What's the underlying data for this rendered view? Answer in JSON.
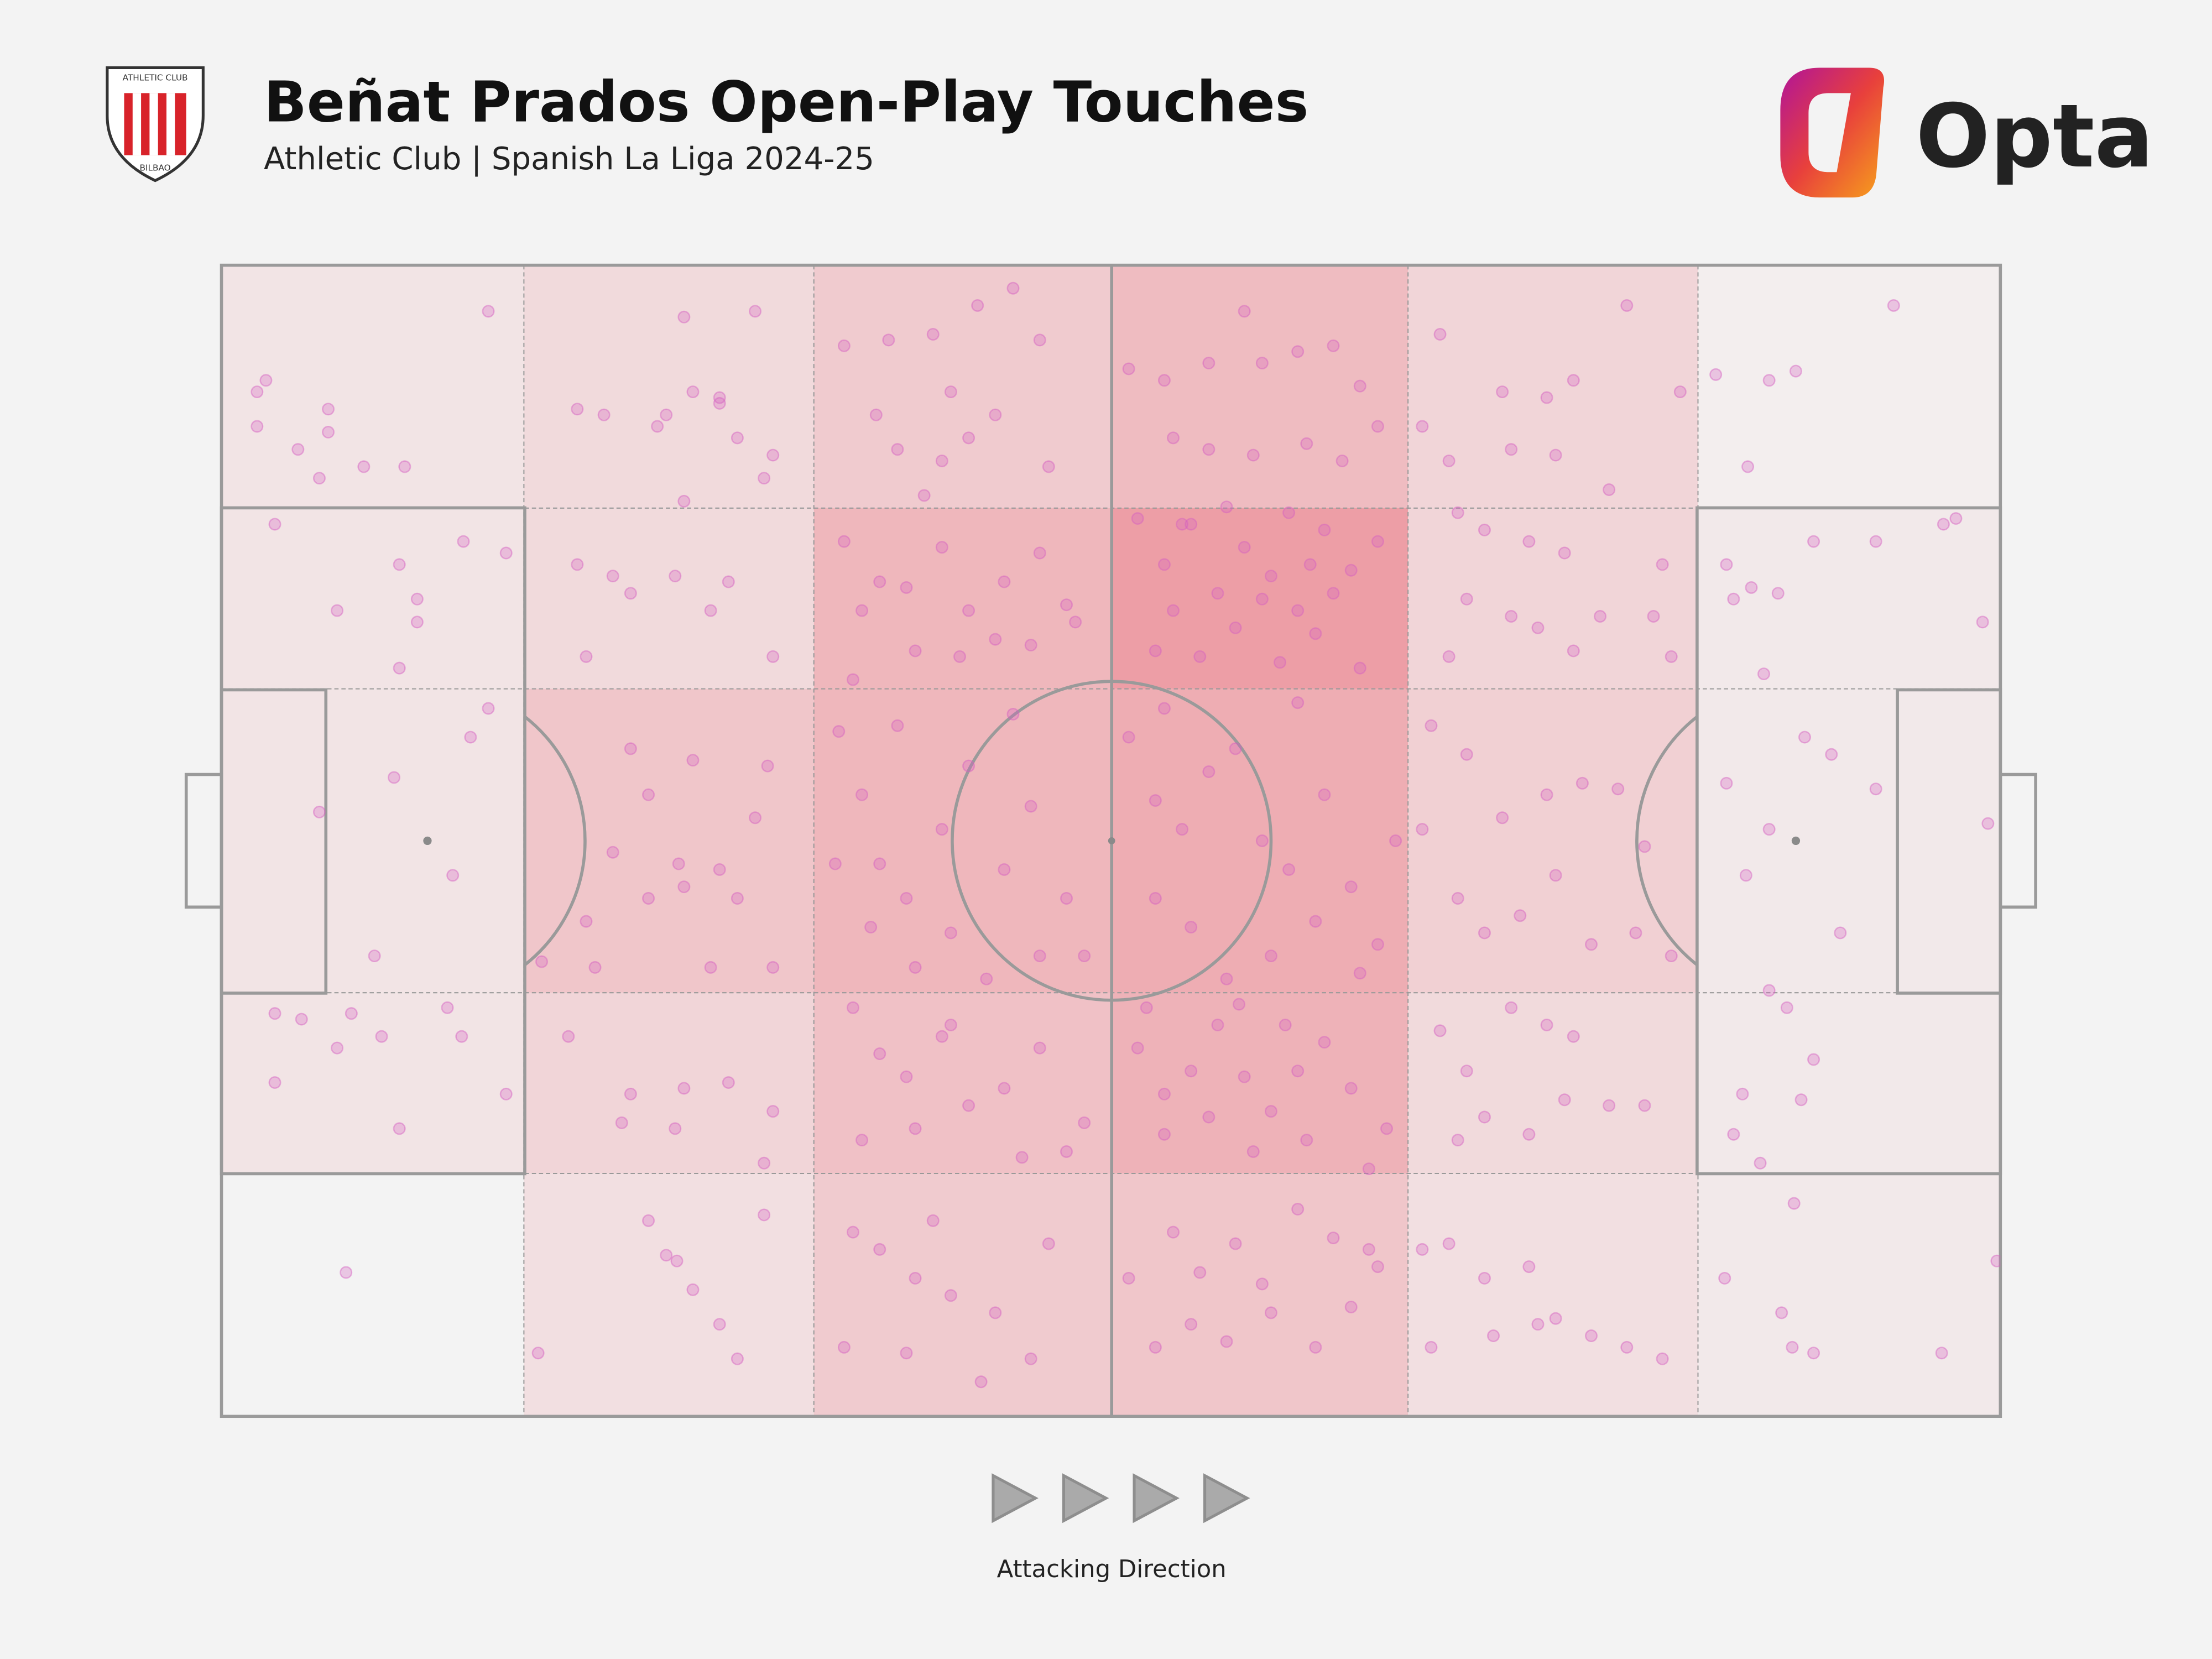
{
  "chart_data": {
    "type": "pitch-heatmap",
    "title": "Beñat Prados Open-Play Touches",
    "subtitle": "Athletic Club | Spanish La Liga 2024-25",
    "crest_top": "ATHLETIC CLUB",
    "crest_bottom": "BILBAO",
    "brand": "Opta",
    "annotation": "Attacking Direction",
    "xlim": [
      0,
      100
    ],
    "ylim": [
      0,
      100
    ],
    "colorscale": [
      "#f3f3f3",
      "#ec8f98"
    ],
    "point_color": "#d45fc0",
    "zones": {
      "x_edges": [
        0,
        17,
        33.3,
        50,
        66.7,
        83,
        100
      ],
      "y_edges": [
        0,
        21.1,
        36.8,
        63.2,
        78.9,
        100
      ],
      "values": [
        [
          0.15,
          0.25,
          0.4,
          0.55,
          0.3,
          0.05
        ],
        [
          0.15,
          0.25,
          0.6,
          0.85,
          0.3,
          0.1
        ],
        [
          0.15,
          0.45,
          0.6,
          0.7,
          0.35,
          0.1
        ],
        [
          0.15,
          0.3,
          0.5,
          0.65,
          0.25,
          0.1
        ],
        [
          0.0,
          0.2,
          0.4,
          0.45,
          0.2,
          0.1
        ]
      ]
    },
    "points": [
      [
        2,
        11
      ],
      [
        2.5,
        10
      ],
      [
        2,
        14
      ],
      [
        4.3,
        16
      ],
      [
        6,
        12.5
      ],
      [
        6,
        14.5
      ],
      [
        5.5,
        18.5
      ],
      [
        8,
        17.5
      ],
      [
        10.3,
        17.5
      ],
      [
        15,
        4
      ],
      [
        3,
        22.5
      ],
      [
        10,
        26
      ],
      [
        11,
        29
      ],
      [
        11,
        31
      ],
      [
        6.5,
        30
      ],
      [
        10,
        35
      ],
      [
        13.6,
        24
      ],
      [
        16,
        25
      ],
      [
        9.7,
        44.5
      ],
      [
        5.5,
        47.5
      ],
      [
        9,
        67
      ],
      [
        7.3,
        65
      ],
      [
        8.6,
        60
      ],
      [
        13,
        53
      ],
      [
        15,
        38.5
      ],
      [
        14,
        41
      ],
      [
        3,
        65
      ],
      [
        4.5,
        65.5
      ],
      [
        6.5,
        68
      ],
      [
        3,
        71
      ],
      [
        12.7,
        64.5
      ],
      [
        13.5,
        67
      ],
      [
        16,
        72
      ],
      [
        10,
        75
      ],
      [
        7,
        87.5
      ],
      [
        26,
        4.5
      ],
      [
        30,
        4
      ],
      [
        28,
        11.5
      ],
      [
        25,
        13
      ],
      [
        20,
        12.5
      ],
      [
        21.5,
        13
      ],
      [
        26.5,
        11
      ],
      [
        28,
        12
      ],
      [
        24.5,
        14
      ],
      [
        29,
        15
      ],
      [
        31,
        16.5
      ],
      [
        30.5,
        18.5
      ],
      [
        26,
        20.5
      ],
      [
        20,
        26
      ],
      [
        22,
        27
      ],
      [
        23,
        28.5
      ],
      [
        25.5,
        27
      ],
      [
        28.5,
        27.5
      ],
      [
        31,
        34
      ],
      [
        20.5,
        34
      ],
      [
        27.5,
        30
      ],
      [
        18,
        60.5
      ],
      [
        21,
        61
      ],
      [
        24,
        55
      ],
      [
        26,
        54
      ],
      [
        28,
        52.5
      ],
      [
        30,
        48
      ],
      [
        23,
        42
      ],
      [
        26.5,
        43
      ],
      [
        25.7,
        52
      ],
      [
        24,
        46
      ],
      [
        20.5,
        57
      ],
      [
        30.7,
        43.5
      ],
      [
        22,
        51
      ],
      [
        29,
        55
      ],
      [
        31,
        61
      ],
      [
        27.5,
        61
      ],
      [
        19.5,
        67
      ],
      [
        23,
        72
      ],
      [
        26,
        71.5
      ],
      [
        28.5,
        71
      ],
      [
        31,
        73.5
      ],
      [
        22.5,
        74.5
      ],
      [
        25.5,
        75
      ],
      [
        30.5,
        78
      ],
      [
        24,
        83
      ],
      [
        25,
        86
      ],
      [
        26.5,
        89
      ],
      [
        28,
        92
      ],
      [
        29,
        95
      ],
      [
        25.6,
        86.5
      ],
      [
        30.5,
        82.5
      ],
      [
        17.8,
        94.5
      ],
      [
        35,
        7
      ],
      [
        37.5,
        6.5
      ],
      [
        40,
        6
      ],
      [
        42.5,
        3.5
      ],
      [
        44.5,
        2
      ],
      [
        46,
        6.5
      ],
      [
        41,
        11
      ],
      [
        43.5,
        13
      ],
      [
        38,
        16
      ],
      [
        40.5,
        17
      ],
      [
        42,
        15
      ],
      [
        46.5,
        17.5
      ],
      [
        36.8,
        13
      ],
      [
        39.5,
        20
      ],
      [
        35,
        24
      ],
      [
        37,
        27.5
      ],
      [
        38.5,
        28
      ],
      [
        40.5,
        24.5
      ],
      [
        42,
        30
      ],
      [
        44,
        27.5
      ],
      [
        46,
        25
      ],
      [
        48,
        31
      ],
      [
        36,
        30
      ],
      [
        39,
        33.5
      ],
      [
        41.5,
        34
      ],
      [
        43.5,
        32.5
      ],
      [
        45.5,
        33
      ],
      [
        47.5,
        29.5
      ],
      [
        35.5,
        36
      ],
      [
        34.7,
        40.5
      ],
      [
        36,
        46
      ],
      [
        37,
        52
      ],
      [
        38.5,
        55
      ],
      [
        40.5,
        49
      ],
      [
        42,
        43.5
      ],
      [
        44,
        52.5
      ],
      [
        45.5,
        47
      ],
      [
        47.5,
        55
      ],
      [
        48.5,
        60
      ],
      [
        36.5,
        57.5
      ],
      [
        39,
        61
      ],
      [
        41,
        58
      ],
      [
        43,
        62
      ],
      [
        46,
        60
      ],
      [
        34.5,
        52
      ],
      [
        38,
        40
      ],
      [
        44.5,
        39
      ],
      [
        35.5,
        64.5
      ],
      [
        37,
        68.5
      ],
      [
        38.5,
        70.5
      ],
      [
        40.5,
        67
      ],
      [
        42,
        73
      ],
      [
        44,
        71.5
      ],
      [
        46,
        68
      ],
      [
        48.5,
        74.5
      ],
      [
        36,
        76
      ],
      [
        39,
        75
      ],
      [
        41,
        66
      ],
      [
        45,
        77.5
      ],
      [
        47.5,
        77
      ],
      [
        35.5,
        84
      ],
      [
        37,
        85.5
      ],
      [
        39,
        88
      ],
      [
        41,
        89.5
      ],
      [
        43.5,
        91
      ],
      [
        45.5,
        95
      ],
      [
        35,
        94
      ],
      [
        38.5,
        94.5
      ],
      [
        42.7,
        97
      ],
      [
        46.5,
        85
      ],
      [
        40,
        83
      ],
      [
        51,
        9
      ],
      [
        53,
        10
      ],
      [
        55.5,
        8.5
      ],
      [
        57.5,
        4
      ],
      [
        58.5,
        8.5
      ],
      [
        60.5,
        7.5
      ],
      [
        62.5,
        7
      ],
      [
        64,
        10.5
      ],
      [
        53.5,
        15
      ],
      [
        55.5,
        16
      ],
      [
        58,
        16.5
      ],
      [
        61,
        15.5
      ],
      [
        63,
        17
      ],
      [
        65,
        14
      ],
      [
        51.5,
        22
      ],
      [
        53,
        26
      ],
      [
        54.5,
        22.5
      ],
      [
        56,
        28.5
      ],
      [
        57.5,
        24.5
      ],
      [
        59,
        27
      ],
      [
        60.5,
        30
      ],
      [
        62,
        23
      ],
      [
        63.5,
        26.5
      ],
      [
        65,
        24
      ],
      [
        52.5,
        33.5
      ],
      [
        55,
        34
      ],
      [
        57,
        31.5
      ],
      [
        59.5,
        34.5
      ],
      [
        61.5,
        32
      ],
      [
        64,
        35
      ],
      [
        53.5,
        30
      ],
      [
        56.5,
        21
      ],
      [
        60,
        21.5
      ],
      [
        62.5,
        28.5
      ],
      [
        54,
        22.5
      ],
      [
        58.5,
        29
      ],
      [
        61.2,
        26
      ],
      [
        51,
        41
      ],
      [
        52.5,
        46.5
      ],
      [
        54,
        49
      ],
      [
        55.5,
        44
      ],
      [
        57,
        42
      ],
      [
        58.5,
        50
      ],
      [
        60,
        52.5
      ],
      [
        62,
        46
      ],
      [
        63.5,
        54
      ],
      [
        65,
        59
      ],
      [
        52.5,
        55
      ],
      [
        54.5,
        57.5
      ],
      [
        56.5,
        62
      ],
      [
        59,
        60
      ],
      [
        61.5,
        57
      ],
      [
        64,
        61.5
      ],
      [
        66,
        50
      ],
      [
        53,
        38.5
      ],
      [
        60.5,
        38
      ],
      [
        51.5,
        68
      ],
      [
        53,
        72
      ],
      [
        54.5,
        70
      ],
      [
        56,
        66
      ],
      [
        57.5,
        70.5
      ],
      [
        59,
        73.5
      ],
      [
        60.5,
        70
      ],
      [
        62,
        67.5
      ],
      [
        63.5,
        71.5
      ],
      [
        65.5,
        75
      ],
      [
        53,
        75.5
      ],
      [
        55.5,
        74
      ],
      [
        58,
        77
      ],
      [
        61,
        76
      ],
      [
        64.5,
        78.5
      ],
      [
        52,
        64.5
      ],
      [
        57.2,
        64.2
      ],
      [
        59.8,
        66
      ],
      [
        51,
        88
      ],
      [
        53.5,
        84
      ],
      [
        55,
        87.5
      ],
      [
        57,
        85
      ],
      [
        58.5,
        88.5
      ],
      [
        60.5,
        82
      ],
      [
        62.5,
        84.5
      ],
      [
        64.5,
        85.5
      ],
      [
        52.5,
        94
      ],
      [
        54.5,
        92
      ],
      [
        56.5,
        93.5
      ],
      [
        59,
        91
      ],
      [
        61.5,
        94
      ],
      [
        63.5,
        90.5
      ],
      [
        65,
        87
      ],
      [
        68.5,
        6
      ],
      [
        72,
        11
      ],
      [
        74.5,
        11.5
      ],
      [
        76,
        10
      ],
      [
        79,
        3.5
      ],
      [
        82,
        11
      ],
      [
        84,
        9.5
      ],
      [
        67.5,
        14
      ],
      [
        69,
        17
      ],
      [
        72.5,
        16
      ],
      [
        75,
        16.5
      ],
      [
        78,
        19.5
      ],
      [
        69.5,
        21.5
      ],
      [
        71,
        23
      ],
      [
        73.5,
        24
      ],
      [
        75.5,
        25
      ],
      [
        77.5,
        30.5
      ],
      [
        80.5,
        30.5
      ],
      [
        81,
        26
      ],
      [
        70,
        29
      ],
      [
        72.5,
        30.5
      ],
      [
        74,
        31.5
      ],
      [
        69,
        34
      ],
      [
        76,
        33.5
      ],
      [
        81.5,
        34
      ],
      [
        68,
        40
      ],
      [
        70,
        42.5
      ],
      [
        72,
        48
      ],
      [
        74.5,
        46
      ],
      [
        76.5,
        45
      ],
      [
        78.5,
        45.5
      ],
      [
        80,
        50.5
      ],
      [
        69.5,
        55
      ],
      [
        71,
        58
      ],
      [
        73,
        56.5
      ],
      [
        75,
        53
      ],
      [
        77,
        59
      ],
      [
        79.5,
        58
      ],
      [
        81.5,
        60
      ],
      [
        67.5,
        49
      ],
      [
        68.5,
        66.5
      ],
      [
        70,
        70
      ],
      [
        72.5,
        64.5
      ],
      [
        74.5,
        66
      ],
      [
        76,
        67
      ],
      [
        78,
        73
      ],
      [
        80,
        73
      ],
      [
        69.5,
        76
      ],
      [
        71,
        74
      ],
      [
        73.5,
        75.5
      ],
      [
        75.5,
        72.5
      ],
      [
        67.5,
        85.5
      ],
      [
        69,
        85
      ],
      [
        71,
        88
      ],
      [
        73.5,
        87
      ],
      [
        75,
        91.5
      ],
      [
        77,
        93
      ],
      [
        79,
        94
      ],
      [
        81,
        95
      ],
      [
        68,
        94
      ],
      [
        71.5,
        93
      ],
      [
        74,
        92
      ],
      [
        88.5,
        9.2
      ],
      [
        94,
        3.5
      ],
      [
        85.8,
        17.5
      ],
      [
        87,
        10
      ],
      [
        84.6,
        26
      ],
      [
        86,
        28
      ],
      [
        87.5,
        28.5
      ],
      [
        89.5,
        24
      ],
      [
        93,
        24
      ],
      [
        96.8,
        22.5
      ],
      [
        97.5,
        22
      ],
      [
        99,
        31
      ],
      [
        86.7,
        35.5
      ],
      [
        85,
        29
      ],
      [
        84.6,
        45
      ],
      [
        87,
        49
      ],
      [
        89,
        41
      ],
      [
        90.5,
        42.5
      ],
      [
        93,
        45.5
      ],
      [
        99.3,
        48.5
      ],
      [
        85.7,
        53
      ],
      [
        91,
        58
      ],
      [
        87,
        63
      ],
      [
        88,
        64.5
      ],
      [
        89.5,
        69
      ],
      [
        85.5,
        72
      ],
      [
        88.8,
        72.5
      ],
      [
        85,
        75.5
      ],
      [
        86.5,
        78
      ],
      [
        88.4,
        81.5
      ],
      [
        84.5,
        88
      ],
      [
        87.7,
        91
      ],
      [
        96.7,
        94.5
      ],
      [
        88.3,
        94
      ],
      [
        89.5,
        94.5
      ],
      [
        99.8,
        86.5
      ]
    ]
  }
}
